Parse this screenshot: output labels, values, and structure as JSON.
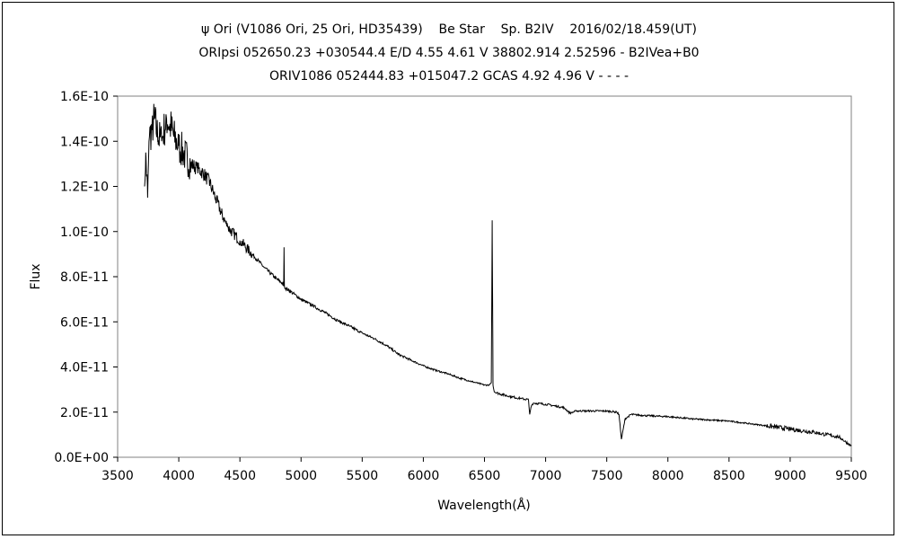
{
  "chart_data": {
    "type": "line",
    "title_lines": [
      "ψ Ori (V1086 Ori, 25 Ori, HD35439)    Be Star    Sp. B2IV    2016/02/18.459(UT)",
      "ORIpsi 052650.23 +030544.4 E/D 4.55 4.61 V 38802.914 2.52596 - B2IVea+B0",
      "ORIV1086 052444.83 +015047.2 GCAS 4.92 4.96 V - - - -"
    ],
    "xlabel": "Wavelength(Å)",
    "ylabel": "Flux",
    "xlim": [
      3500,
      9500
    ],
    "ylim": [
      0,
      1.6e-10
    ],
    "xticks": [
      "3500",
      "4000",
      "4500",
      "5000",
      "5500",
      "6000",
      "6500",
      "7000",
      "7500",
      "8000",
      "8500",
      "9000",
      "9500"
    ],
    "yticks": [
      "0.0E+00",
      "2.0E-11",
      "4.0E-11",
      "6.0E-11",
      "8.0E-11",
      "1.0E-10",
      "1.2E-10",
      "1.4E-10",
      "1.6E-10"
    ],
    "grid": false,
    "line_color": "#000000",
    "series": [
      {
        "x": [
          3720,
          3730,
          3745,
          3760,
          3780,
          3800,
          3830,
          3860,
          3900,
          3930,
          3960,
          4000,
          4050,
          4100,
          4150,
          4200,
          4250,
          4300,
          4350,
          4400,
          4450,
          4500,
          4600,
          4700,
          4800,
          4850,
          4858,
          4861,
          4864,
          4870,
          4900,
          5000,
          5100,
          5200,
          5300,
          5400,
          5500,
          5600,
          5700,
          5800,
          5900,
          6000,
          6100,
          6200,
          6300,
          6400,
          6500,
          6540,
          6556,
          6563,
          6570,
          6580,
          6600,
          6700,
          6800,
          6860,
          6870,
          6885,
          6900,
          7000,
          7150,
          7200,
          7250,
          7300,
          7500,
          7580,
          7600,
          7620,
          7650,
          7700,
          7800,
          8000,
          8200,
          8500,
          8800,
          9000,
          9200,
          9300,
          9400,
          9500
        ],
        "y": [
          1.2e-10,
          1.35e-10,
          1.15e-10,
          1.42e-10,
          1.45e-10,
          1.5e-10,
          1.42e-10,
          1.4e-10,
          1.5e-10,
          1.47e-10,
          1.42e-10,
          1.38e-10,
          1.34e-10,
          1.3e-10,
          1.28e-10,
          1.26e-10,
          1.22e-10,
          1.15e-10,
          1.08e-10,
          1.02e-10,
          9.9e-11,
          9.6e-11,
          9e-11,
          8.4e-11,
          7.9e-11,
          7.7e-11,
          7.6e-11,
          9.3e-11,
          7.6e-11,
          7.5e-11,
          7.4e-11,
          7e-11,
          6.7e-11,
          6.4e-11,
          6.05e-11,
          5.8e-11,
          5.5e-11,
          5.25e-11,
          4.95e-11,
          4.55e-11,
          4.3e-11,
          4.05e-11,
          3.85e-11,
          3.7e-11,
          3.5e-11,
          3.35e-11,
          3.2e-11,
          3.2e-11,
          3.3e-11,
          1.05e-10,
          3.2e-11,
          2.9e-11,
          2.85e-11,
          2.7e-11,
          2.6e-11,
          2.55e-11,
          1.9e-11,
          2.3e-11,
          2.4e-11,
          2.35e-11,
          2.2e-11,
          1.95e-11,
          2.05e-11,
          2.05e-11,
          2.05e-11,
          2e-11,
          1.9e-11,
          8e-12,
          1.7e-11,
          1.9e-11,
          1.85e-11,
          1.8e-11,
          1.7e-11,
          1.6e-11,
          1.4e-11,
          1.25e-11,
          1.1e-11,
          1e-11,
          9e-12,
          5e-12
        ]
      }
    ]
  }
}
